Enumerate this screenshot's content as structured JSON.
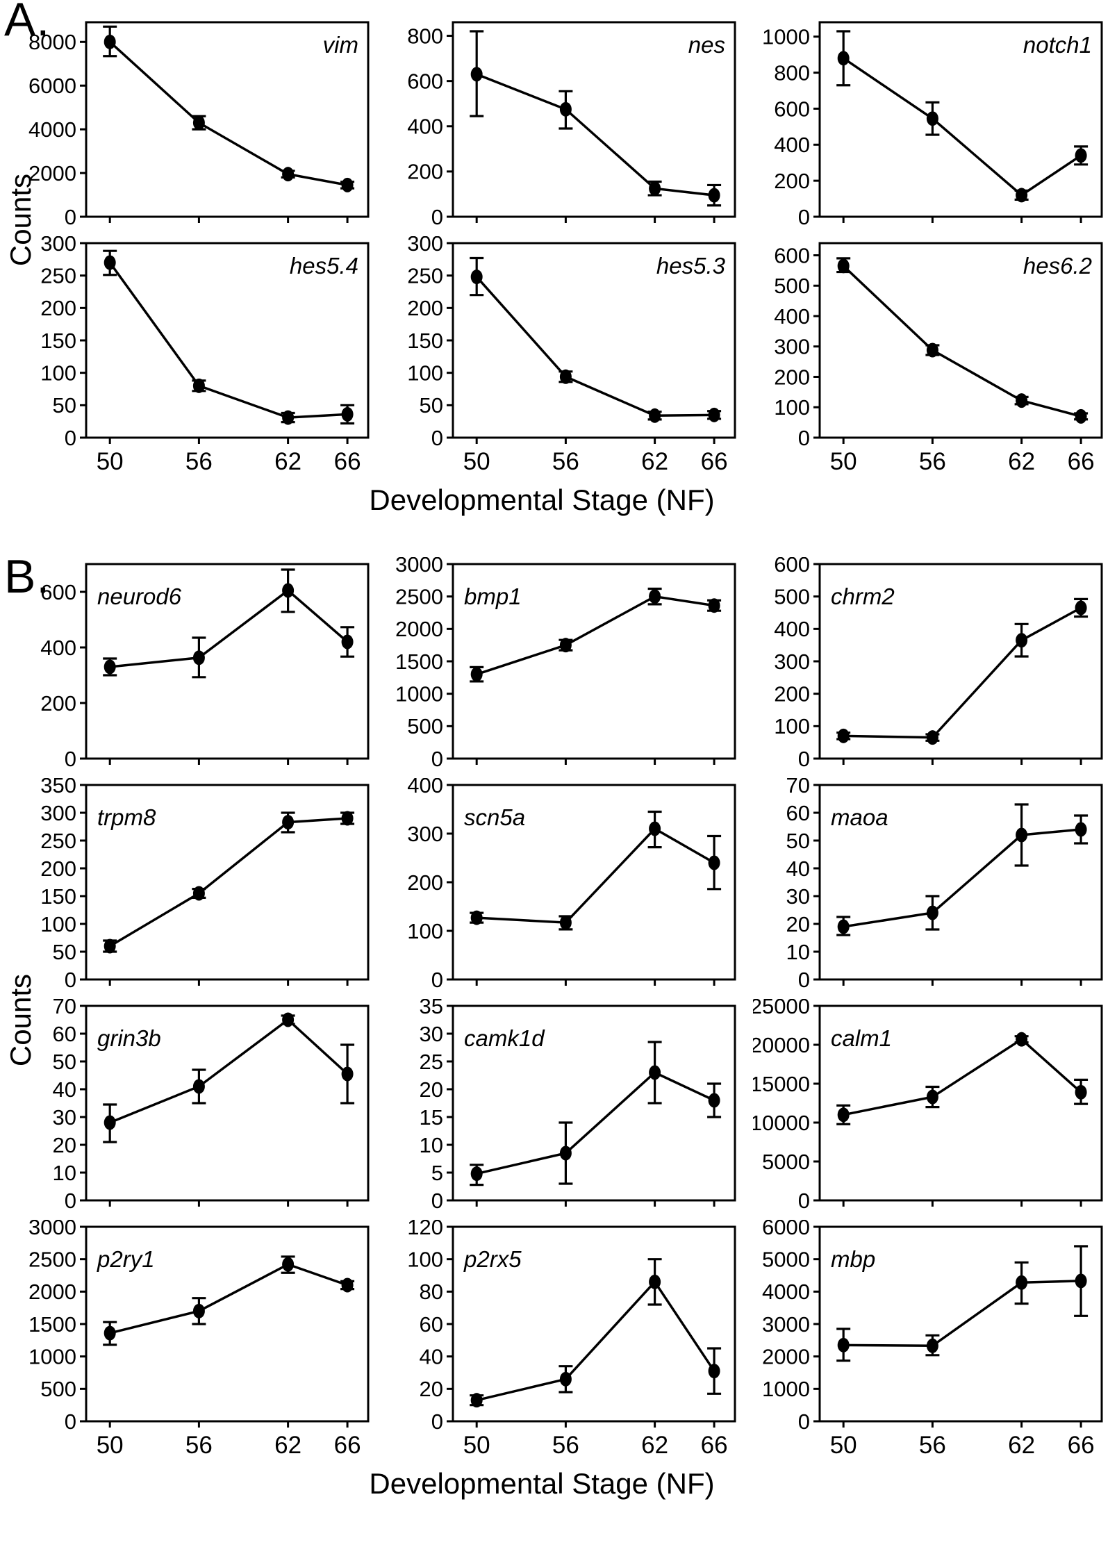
{
  "figure": {
    "panel_a_label": "A.",
    "panel_b_label": "B.",
    "ylabel": "Counts",
    "xlabel": "Developmental Stage (NF)",
    "x_tick_labels": [
      "50",
      "56",
      "62",
      "66"
    ]
  },
  "chart_data": [
    {
      "panel": "A",
      "gene": "vim",
      "type": "line",
      "x": [
        50,
        56,
        62,
        66
      ],
      "y": [
        8000,
        4300,
        1950,
        1450
      ],
      "err_lo": [
        7350,
        4000,
        1800,
        1300
      ],
      "err_hi": [
        8700,
        4600,
        2100,
        1600
      ],
      "yticks": [
        0,
        2000,
        4000,
        6000,
        8000
      ],
      "ylim": [
        0,
        8900
      ]
    },
    {
      "panel": "A",
      "gene": "nes",
      "type": "line",
      "x": [
        50,
        56,
        62,
        66
      ],
      "y": [
        630,
        475,
        125,
        95
      ],
      "err_lo": [
        445,
        390,
        95,
        50
      ],
      "err_hi": [
        820,
        555,
        155,
        140
      ],
      "yticks": [
        0,
        200,
        400,
        600,
        800
      ],
      "ylim": [
        0,
        860
      ]
    },
    {
      "panel": "A",
      "gene": "notch1",
      "type": "line",
      "x": [
        50,
        56,
        62,
        66
      ],
      "y": [
        880,
        545,
        120,
        340
      ],
      "err_lo": [
        730,
        455,
        95,
        290
      ],
      "err_hi": [
        1030,
        635,
        145,
        390
      ],
      "yticks": [
        0,
        200,
        400,
        600,
        800,
        1000
      ],
      "ylim": [
        0,
        1080
      ]
    },
    {
      "panel": "A",
      "gene": "hes5.4",
      "type": "line",
      "x": [
        50,
        56,
        62,
        66
      ],
      "y": [
        270,
        80,
        31,
        36
      ],
      "err_lo": [
        251,
        72,
        24,
        22
      ],
      "err_hi": [
        288,
        88,
        38,
        50
      ],
      "yticks": [
        0,
        50,
        100,
        150,
        200,
        250,
        300
      ],
      "ylim": [
        0,
        300
      ]
    },
    {
      "panel": "A",
      "gene": "hes5.3",
      "type": "line",
      "x": [
        50,
        56,
        62,
        66
      ],
      "y": [
        248,
        94,
        34,
        35
      ],
      "err_lo": [
        220,
        86,
        28,
        29
      ],
      "err_hi": [
        277,
        102,
        40,
        41
      ],
      "yticks": [
        0,
        50,
        100,
        150,
        200,
        250,
        300
      ],
      "ylim": [
        0,
        300
      ]
    },
    {
      "panel": "A",
      "gene": "hes6.2",
      "type": "line",
      "x": [
        50,
        56,
        62,
        66
      ],
      "y": [
        565,
        288,
        122,
        70
      ],
      "err_lo": [
        545,
        272,
        110,
        60
      ],
      "err_hi": [
        590,
        304,
        134,
        80
      ],
      "yticks": [
        0,
        100,
        200,
        300,
        400,
        500,
        600
      ],
      "ylim": [
        0,
        640
      ]
    },
    {
      "panel": "B",
      "gene": "neurod6",
      "type": "line",
      "x": [
        50,
        56,
        62,
        66
      ],
      "y": [
        330,
        363,
        605,
        420
      ],
      "err_lo": [
        300,
        293,
        528,
        367
      ],
      "err_hi": [
        360,
        435,
        680,
        473
      ],
      "yticks": [
        0,
        200,
        400,
        600
      ],
      "ylim": [
        0,
        700
      ]
    },
    {
      "panel": "B",
      "gene": "bmp1",
      "type": "line",
      "x": [
        50,
        56,
        62,
        66
      ],
      "y": [
        1300,
        1750,
        2500,
        2360
      ],
      "err_lo": [
        1190,
        1670,
        2380,
        2280
      ],
      "err_hi": [
        1410,
        1830,
        2620,
        2440
      ],
      "yticks": [
        0,
        500,
        1000,
        1500,
        2000,
        2500,
        3000
      ],
      "ylim": [
        0,
        3000
      ]
    },
    {
      "panel": "B",
      "gene": "chrm2",
      "type": "line",
      "x": [
        50,
        56,
        62,
        66
      ],
      "y": [
        70,
        65,
        365,
        465
      ],
      "err_lo": [
        60,
        55,
        315,
        438
      ],
      "err_hi": [
        80,
        75,
        415,
        492
      ],
      "yticks": [
        0,
        100,
        200,
        300,
        400,
        500,
        600
      ],
      "ylim": [
        0,
        600
      ]
    },
    {
      "panel": "B",
      "gene": "trpm8",
      "type": "line",
      "x": [
        50,
        56,
        62,
        66
      ],
      "y": [
        60,
        155,
        283,
        290
      ],
      "err_lo": [
        50,
        147,
        265,
        280
      ],
      "err_hi": [
        70,
        163,
        300,
        300
      ],
      "yticks": [
        0,
        50,
        100,
        150,
        200,
        250,
        300,
        350
      ],
      "ylim": [
        0,
        350
      ]
    },
    {
      "panel": "B",
      "gene": "scn5a",
      "type": "line",
      "x": [
        50,
        56,
        62,
        66
      ],
      "y": [
        127,
        117,
        310,
        240
      ],
      "err_lo": [
        117,
        103,
        272,
        186
      ],
      "err_hi": [
        137,
        130,
        345,
        295
      ],
      "yticks": [
        0,
        100,
        200,
        300,
        400
      ],
      "ylim": [
        0,
        400
      ]
    },
    {
      "panel": "B",
      "gene": "maoa",
      "type": "line",
      "x": [
        50,
        56,
        62,
        66
      ],
      "y": [
        19,
        24,
        52,
        54
      ],
      "err_lo": [
        16,
        18,
        41,
        49
      ],
      "err_hi": [
        22.5,
        30,
        63,
        59
      ],
      "yticks": [
        0,
        10,
        20,
        30,
        40,
        50,
        60,
        70
      ],
      "ylim": [
        0,
        70
      ]
    },
    {
      "panel": "B",
      "gene": "grin3b",
      "type": "line",
      "x": [
        50,
        56,
        62,
        66
      ],
      "y": [
        28,
        41,
        65,
        45.5
      ],
      "err_lo": [
        21,
        35,
        63.5,
        35
      ],
      "err_hi": [
        34.5,
        47,
        66.5,
        56
      ],
      "yticks": [
        0,
        10,
        20,
        30,
        40,
        50,
        60,
        70
      ],
      "ylim": [
        0,
        70
      ]
    },
    {
      "panel": "B",
      "gene": "camk1d",
      "type": "line",
      "x": [
        50,
        56,
        62,
        66
      ],
      "y": [
        4.8,
        8.5,
        23,
        18
      ],
      "err_lo": [
        2.8,
        3,
        17.5,
        15
      ],
      "err_hi": [
        6.4,
        14,
        28.5,
        21
      ],
      "yticks": [
        0,
        5,
        10,
        15,
        20,
        25,
        30,
        35
      ],
      "ylim": [
        0,
        35
      ]
    },
    {
      "panel": "B",
      "gene": "calm1",
      "type": "line",
      "x": [
        50,
        56,
        62,
        66
      ],
      "y": [
        11000,
        13300,
        20700,
        13900
      ],
      "err_lo": [
        9800,
        12000,
        20300,
        12400
      ],
      "err_hi": [
        12200,
        14600,
        21100,
        15500
      ],
      "yticks": [
        0,
        5000,
        10000,
        15000,
        20000,
        25000
      ],
      "ylim": [
        0,
        25000
      ]
    },
    {
      "panel": "B",
      "gene": "p2ry1",
      "type": "line",
      "x": [
        50,
        56,
        62,
        66
      ],
      "y": [
        1360,
        1700,
        2420,
        2100
      ],
      "err_lo": [
        1180,
        1500,
        2290,
        2040
      ],
      "err_hi": [
        1530,
        1900,
        2540,
        2160
      ],
      "yticks": [
        0,
        500,
        1000,
        1500,
        2000,
        2500,
        3000
      ],
      "ylim": [
        0,
        3000
      ]
    },
    {
      "panel": "B",
      "gene": "p2rx5",
      "type": "line",
      "x": [
        50,
        56,
        62,
        66
      ],
      "y": [
        13,
        26,
        86,
        31
      ],
      "err_lo": [
        10,
        18,
        72,
        17
      ],
      "err_hi": [
        16,
        34,
        100,
        45
      ],
      "yticks": [
        0,
        20,
        40,
        60,
        80,
        100,
        120
      ],
      "ylim": [
        0,
        120
      ]
    },
    {
      "panel": "B",
      "gene": "mbp",
      "type": "line",
      "x": [
        50,
        56,
        62,
        66
      ],
      "y": [
        2350,
        2330,
        4280,
        4330
      ],
      "err_lo": [
        1870,
        2040,
        3630,
        3250
      ],
      "err_hi": [
        2850,
        2650,
        4900,
        5400
      ],
      "yticks": [
        0,
        1000,
        2000,
        3000,
        4000,
        5000,
        6000
      ],
      "ylim": [
        0,
        6000
      ]
    }
  ]
}
